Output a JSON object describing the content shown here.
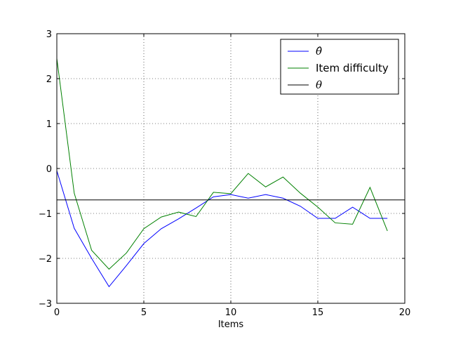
{
  "chart_data": {
    "type": "line",
    "title": "",
    "xlabel": "Items",
    "ylabel": "",
    "xlim": [
      0,
      20
    ],
    "ylim": [
      -3,
      3
    ],
    "xticks": [
      0,
      5,
      10,
      15,
      20
    ],
    "yticks": [
      -3,
      -2,
      -1,
      0,
      1,
      2,
      3
    ],
    "xtick_labels": [
      "0",
      "5",
      "10",
      "15",
      "20"
    ],
    "ytick_labels": [
      "−3",
      "−2",
      "−1",
      "0",
      "1",
      "2",
      "3"
    ],
    "grid": true,
    "legend_position": "top-right",
    "series": [
      {
        "name": "θ̂",
        "color": "#0000ff",
        "x": [
          0,
          1,
          2,
          3,
          4,
          5,
          6,
          7,
          8,
          9,
          10,
          11,
          12,
          13,
          14,
          15,
          16,
          17,
          18,
          19
        ],
        "y": [
          -0.05,
          -1.33,
          -2.0,
          -2.63,
          -2.16,
          -1.67,
          -1.34,
          -1.12,
          -0.88,
          -0.63,
          -0.58,
          -0.66,
          -0.58,
          -0.66,
          -0.84,
          -1.11,
          -1.11,
          -0.86,
          -1.11,
          -1.11
        ]
      },
      {
        "name": "Item difficulty",
        "color": "#008000",
        "x": [
          0,
          1,
          2,
          3,
          4,
          5,
          6,
          7,
          8,
          9,
          10,
          11,
          12,
          13,
          14,
          15,
          16,
          17,
          18,
          19
        ],
        "y": [
          2.45,
          -0.55,
          -1.82,
          -2.24,
          -1.88,
          -1.34,
          -1.08,
          -0.97,
          -1.07,
          -0.53,
          -0.56,
          -0.11,
          -0.41,
          -0.19,
          -0.55,
          -0.86,
          -1.21,
          -1.24,
          -0.42,
          -1.39
        ]
      },
      {
        "name": "θ",
        "color": "#000000",
        "x": [
          0,
          20
        ],
        "y": [
          -0.7,
          -0.7
        ]
      }
    ]
  }
}
